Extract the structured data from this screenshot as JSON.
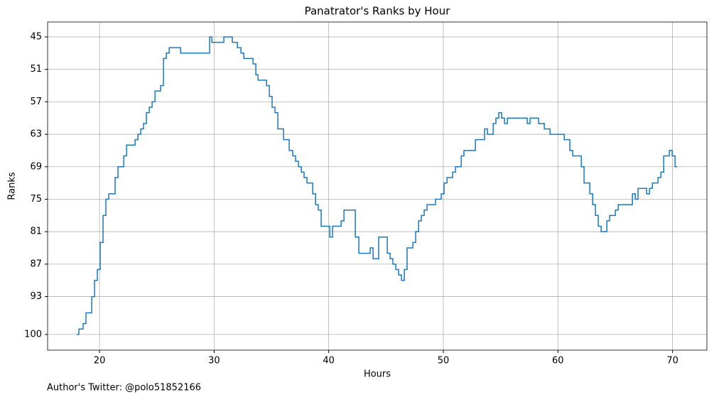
{
  "chart_data": {
    "type": "step",
    "title": "Panatrator's Ranks by Hour",
    "xlabel": "Hours",
    "ylabel": "Ranks",
    "footer": "Author's Twitter: @polo51852166",
    "x": [
      18.02,
      18.2,
      18.57,
      18.82,
      19.32,
      19.57,
      19.81,
      20.06,
      20.31,
      20.56,
      20.81,
      21.36,
      21.61,
      22.11,
      22.36,
      23.1,
      23.35,
      23.6,
      23.84,
      24.09,
      24.34,
      24.59,
      24.84,
      25.33,
      25.58,
      25.83,
      26.08,
      27.07,
      29.61,
      29.8,
      30.85,
      31.59,
      32.03,
      32.34,
      32.59,
      33.39,
      33.64,
      33.83,
      34.57,
      34.82,
      35.06,
      35.31,
      35.56,
      36.06,
      36.55,
      36.86,
      37.11,
      37.36,
      37.61,
      37.85,
      38.1,
      38.6,
      38.85,
      39.09,
      39.34,
      40.09,
      40.33,
      41.08,
      41.33,
      42.32,
      42.63,
      43.62,
      43.87,
      44.36,
      45.11,
      45.36,
      45.6,
      45.85,
      46.1,
      46.35,
      46.6,
      46.84,
      47.34,
      47.59,
      47.84,
      48.08,
      48.33,
      48.58,
      49.32,
      49.82,
      50.07,
      50.32,
      50.81,
      51.06,
      51.56,
      51.8,
      52.8,
      53.6,
      53.85,
      54.35,
      54.59,
      54.84,
      55.09,
      55.34,
      55.59,
      57.32,
      57.57,
      58.31,
      58.81,
      59.31,
      60.55,
      61.04,
      61.29,
      62.04,
      62.28,
      62.78,
      63.03,
      63.27,
      63.52,
      63.77,
      64.27,
      64.51,
      65.01,
      65.26,
      66.5,
      66.75,
      66.99,
      67.74,
      67.99,
      68.24,
      68.73,
      68.98,
      69.23,
      69.72,
      69.97,
      70.22,
      70.4
    ],
    "series": [
      {
        "name": "Rank",
        "color": "#1f77b4",
        "values": [
          100,
          99,
          98,
          96,
          93,
          90,
          88,
          83,
          78,
          75,
          74,
          71,
          69,
          67,
          65,
          64,
          63,
          62,
          61,
          59,
          58,
          57,
          55,
          54,
          49,
          48,
          47,
          48,
          45,
          46,
          45,
          46,
          47,
          48,
          49,
          50,
          52,
          53,
          54,
          56,
          58,
          59,
          62,
          64,
          66,
          67,
          68,
          69,
          70,
          71,
          72,
          74,
          76,
          77,
          80,
          82,
          80,
          79,
          77,
          82,
          85,
          84,
          86,
          82,
          85,
          86,
          87,
          88,
          89,
          90,
          88,
          84,
          83,
          81,
          79,
          78,
          77,
          76,
          75,
          74,
          72,
          71,
          70,
          69,
          67,
          66,
          64,
          62,
          63,
          61,
          60,
          59,
          60,
          61,
          60,
          61,
          60,
          61,
          62,
          63,
          64,
          66,
          67,
          69,
          72,
          74,
          76,
          78,
          80,
          81,
          79,
          78,
          77,
          76,
          74,
          75,
          73,
          74,
          73,
          72,
          71,
          70,
          67,
          66,
          67,
          69,
          69
        ]
      }
    ],
    "xlim": [
      15.47,
      73.0
    ],
    "xticks": [
      20,
      30,
      40,
      50,
      60,
      70
    ],
    "ylim": [
      102.9,
      42.25
    ],
    "yticks": [
      45,
      51,
      57,
      63,
      69,
      75,
      81,
      87,
      93,
      100
    ],
    "grid": true
  }
}
